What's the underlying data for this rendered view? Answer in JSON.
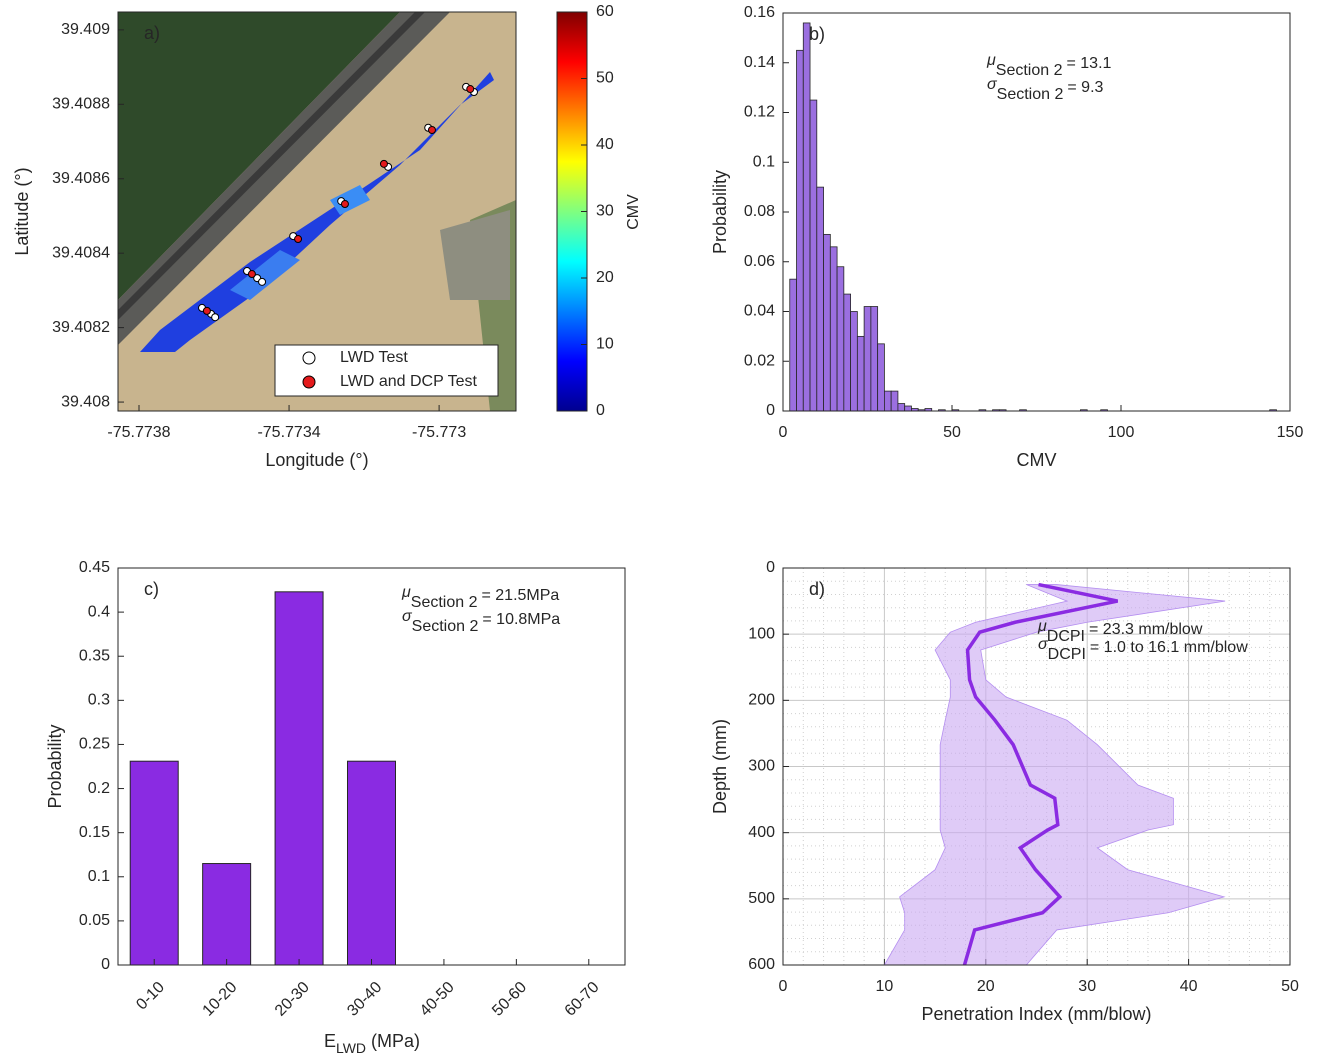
{
  "chart_data": [
    {
      "type": "map",
      "label": "a)",
      "xlabel": "Longitude (°)",
      "ylabel": "Latitude (°)",
      "xlim": [
        -75.773856,
        -75.772795
      ],
      "xticks": [
        -75.7738,
        -75.7734,
        -75.773
      ],
      "ylim": [
        39.407976,
        39.409048
      ],
      "yticks": [
        39.408,
        39.4082,
        39.4084,
        39.4086,
        39.4088,
        39.409
      ],
      "series": [
        {
          "name": "LWD Test",
          "color": "#ffffff",
          "x": [
            -75.773632,
            -75.773608,
            -75.773597,
            -75.773512,
            -75.773485,
            -75.773472,
            -75.773389,
            -75.773261,
            -75.773136,
            -75.773029,
            -75.772928,
            -75.772907
          ],
          "values": [
            39.408253,
            39.408237,
            39.408228,
            39.408352,
            39.408333,
            39.408323,
            39.408446,
            39.40854,
            39.408632,
            39.408737,
            39.408847,
            39.408833
          ]
        },
        {
          "name": "LWD and DCP Test",
          "color": "#e41a1c",
          "x": [
            -75.773619,
            -75.773499,
            -75.773376,
            -75.773251,
            -75.773147,
            -75.773019,
            -75.772917
          ],
          "values": [
            39.408245,
            39.408344,
            39.408438,
            39.408532,
            39.40864,
            39.408731,
            39.408841
          ]
        }
      ],
      "colorbar": {
        "label": "CMV",
        "lim": [
          0,
          60
        ],
        "ticks": [
          0,
          10,
          20,
          30,
          40,
          50,
          60
        ]
      }
    },
    {
      "type": "histogram",
      "label": "b)",
      "xlabel": "CMV",
      "ylabel": "Probability",
      "color": "#9b6fe0",
      "xlim": [
        0,
        150
      ],
      "xticks": [
        0,
        50,
        100,
        150
      ],
      "ylim": [
        0,
        0.16
      ],
      "yticks": [
        0,
        0.02,
        0.04,
        0.06,
        0.08,
        0.1,
        0.12,
        0.14,
        0.16
      ],
      "bins": [
        2,
        4,
        6,
        8,
        10,
        12,
        14,
        16,
        18,
        20,
        22,
        24,
        26,
        28,
        30,
        32,
        34,
        36,
        38,
        40,
        42,
        44,
        46,
        48,
        50,
        52,
        54,
        56,
        58,
        60,
        62,
        64,
        66,
        68,
        70,
        72,
        74,
        76,
        78,
        80,
        82,
        84,
        86,
        88,
        90,
        92,
        94,
        96,
        98,
        100,
        102,
        104,
        106,
        108,
        110,
        112,
        114,
        116,
        118,
        120,
        122,
        124,
        126,
        128,
        130,
        132,
        134,
        136,
        138,
        140,
        142,
        144,
        146,
        148
      ],
      "values": [
        0.053,
        0.145,
        0.156,
        0.125,
        0.09,
        0.071,
        0.066,
        0.058,
        0.047,
        0.04,
        0.03,
        0.042,
        0.042,
        0.027,
        0.008,
        0.008,
        0.003,
        0.002,
        0.001,
        0.0005,
        0.001,
        0,
        0.0005,
        0,
        0.0005,
        0,
        0,
        0,
        0.0005,
        0,
        0.0005,
        0.0005,
        0,
        0,
        0.0005,
        0,
        0,
        0,
        0,
        0,
        0,
        0,
        0,
        0.0005,
        0,
        0,
        0.0005,
        0,
        0,
        0,
        0,
        0,
        0,
        0,
        0,
        0,
        0,
        0,
        0,
        0,
        0,
        0,
        0,
        0,
        0,
        0,
        0,
        0,
        0,
        0,
        0,
        0.0005,
        0
      ],
      "stats": [
        {
          "symbol": "μ",
          "subscript": "Section 2",
          "text": "= 13.1"
        },
        {
          "symbol": "σ",
          "subscript": "Section 2",
          "text": "= 9.3"
        }
      ]
    },
    {
      "type": "bar",
      "label": "c)",
      "xlabel": {
        "text": "E",
        "subscript": "LWD",
        "unit": " (MPa)"
      },
      "ylabel": "Probability",
      "color": "#8a2be2",
      "categories": [
        "0-10",
        "10-20",
        "20-30",
        "30-40",
        "40-50",
        "50-60",
        "60-70"
      ],
      "values": [
        0.231,
        0.115,
        0.423,
        0.231,
        0,
        0,
        0
      ],
      "ylim": [
        0,
        0.45
      ],
      "yticks": [
        0,
        0.05,
        0.1,
        0.15,
        0.2,
        0.25,
        0.3,
        0.35,
        0.4,
        0.45
      ],
      "stats": [
        {
          "symbol": "μ",
          "subscript": "Section 2",
          "text": "= 21.5MPa"
        },
        {
          "symbol": "σ",
          "subscript": "Section 2",
          "text": "= 10.8MPa"
        }
      ]
    },
    {
      "type": "line",
      "label": "d)",
      "xlabel": "Penetration Index (mm/blow)",
      "ylabel": "Depth (mm)",
      "xlim": [
        0,
        50
      ],
      "xticks": [
        0,
        10,
        20,
        30,
        40,
        50
      ],
      "ylim": [
        0,
        600
      ],
      "yticks": [
        0,
        100,
        200,
        300,
        400,
        500,
        600
      ],
      "y_reverse": true,
      "grid": true,
      "minor_xticks": [
        2,
        4,
        6,
        8,
        12,
        14,
        16,
        18,
        22,
        24,
        26,
        28,
        32,
        34,
        36,
        38,
        42,
        44,
        46,
        48
      ],
      "minor_yticks": [
        20,
        40,
        60,
        80,
        120,
        140,
        160,
        180,
        220,
        240,
        260,
        280,
        320,
        340,
        360,
        380,
        420,
        440,
        460,
        480,
        520,
        540,
        560,
        580
      ],
      "y": [
        25,
        50,
        82,
        97,
        124,
        169,
        195,
        230,
        267,
        328,
        348,
        388,
        396,
        423,
        456,
        497,
        521,
        547,
        600
      ],
      "series": [
        {
          "color": "#8a2be2",
          "values": [
            25.2,
            33.0,
            22.9,
            19.4,
            18.2,
            18.4,
            19.0,
            20.9,
            22.7,
            24.4,
            26.8,
            27.1,
            26.1,
            23.4,
            24.9,
            27.3,
            25.6,
            18.9,
            17.9
          ]
        }
      ],
      "band": {
        "color": "#c9a8f2",
        "lower": [
          24,
          28,
          19,
          16.5,
          15,
          16.5,
          16.5,
          16,
          15.5,
          15.5,
          15.5,
          15.5,
          15.5,
          16,
          15,
          11.5,
          12,
          12,
          10
        ],
        "upper": [
          27,
          43.6,
          30,
          25,
          19.5,
          20,
          22,
          28,
          31,
          35,
          38.5,
          38.5,
          36,
          31,
          34,
          43.5,
          38,
          27,
          24
        ]
      },
      "stats": [
        {
          "symbol": "μ",
          "subscript": "DCPI",
          "text": "= 23.3 mm/blow"
        },
        {
          "symbol": "σ",
          "subscript": "DCPI",
          "text": "= 1.0 to 16.1 mm/blow"
        }
      ]
    }
  ]
}
